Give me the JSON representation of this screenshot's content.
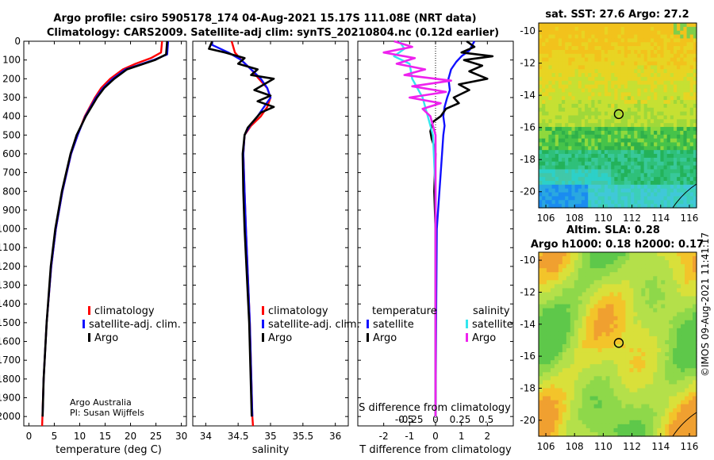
{
  "title_line1": "Argo profile: csiro 5905178_174 04-Aug-2021 15.17S 111.08E (NRT data)",
  "title_line2": "Climatology: CARS2009. Satellite-adj clim: synTS_20210804.nc (0.12d earlier)",
  "timestamp": "©IMOS 09-Aug-2021 11:41:17",
  "credit_line1": "Argo Australia",
  "credit_line2": "PI: Susan Wijffels",
  "colors": {
    "climatology": "#ff0000",
    "satellite": "#1010ff",
    "argo": "#000000",
    "sal_satellite": "#33e6ee",
    "sal_argo": "#ee22ee"
  },
  "chart_data": [
    {
      "type": "line",
      "name": "temperature-panel",
      "xlabel": "temperature (deg C)",
      "ylabel": "",
      "xlim": [
        -1,
        31
      ],
      "ylim": [
        2050,
        0
      ],
      "xticks": [
        0,
        5,
        10,
        15,
        20,
        25,
        30
      ],
      "yticks": [
        0,
        100,
        200,
        300,
        400,
        500,
        600,
        700,
        800,
        900,
        1000,
        1100,
        1200,
        1300,
        1400,
        1500,
        1600,
        1700,
        1800,
        1900,
        2000
      ],
      "legend": [
        "climatology",
        "satellite-adj. clim.",
        "Argo"
      ],
      "legend_position": "lower-right",
      "series": [
        {
          "name": "climatology",
          "color": "#ff0000",
          "depth": [
            0,
            60,
            90,
            120,
            150,
            200,
            250,
            300,
            400,
            500,
            600,
            800,
            1000,
            1200,
            1500,
            1800,
            2050
          ],
          "values": [
            26.2,
            26.0,
            24.0,
            21.0,
            18.5,
            16.0,
            14.2,
            13.0,
            11.0,
            9.6,
            8.3,
            6.6,
            5.3,
            4.4,
            3.5,
            2.9,
            2.6
          ]
        },
        {
          "name": "satellite-adj. clim.",
          "color": "#1010ff",
          "depth": [
            0,
            70,
            100,
            150,
            200,
            250,
            300,
            400,
            500,
            600,
            800,
            1000,
            1200,
            1500,
            1800,
            2000
          ],
          "values": [
            27.4,
            27.2,
            24.5,
            19.0,
            16.5,
            14.6,
            13.2,
            11.1,
            9.6,
            8.3,
            6.6,
            5.3,
            4.4,
            3.5,
            2.9,
            2.7
          ]
        },
        {
          "name": "Argo",
          "color": "#000000",
          "depth": [
            0,
            70,
            100,
            150,
            200,
            250,
            300,
            400,
            500,
            600,
            800,
            1000,
            1200,
            1500,
            1800,
            2000
          ],
          "values": [
            27.2,
            27.0,
            24.8,
            19.3,
            16.8,
            14.8,
            13.4,
            11.2,
            9.4,
            8.2,
            6.5,
            5.2,
            4.3,
            3.5,
            2.9,
            2.7
          ]
        }
      ]
    },
    {
      "type": "line",
      "name": "salinity-panel",
      "xlabel": "salinity",
      "xlim": [
        33.8,
        36.2
      ],
      "ylim": [
        2050,
        0
      ],
      "xticks": [
        34,
        34.5,
        35,
        35.5,
        36
      ],
      "xticklabels": [
        "34",
        "34.5",
        "35",
        "35.5",
        "36"
      ],
      "legend": [
        "climatology",
        "satellite-adj. clim.",
        "Argo"
      ],
      "legend_position": "lower-right",
      "series": [
        {
          "name": "climatology",
          "color": "#ff0000",
          "depth": [
            0,
            60,
            100,
            150,
            200,
            250,
            300,
            350,
            400,
            450,
            500,
            600,
            800,
            1000,
            1500,
            2000,
            2050
          ],
          "values": [
            34.4,
            34.45,
            34.55,
            34.7,
            34.82,
            34.95,
            35.0,
            34.95,
            34.85,
            34.7,
            34.6,
            34.58,
            34.6,
            34.62,
            34.68,
            34.72,
            34.73
          ]
        },
        {
          "name": "satellite-adj. clim.",
          "color": "#1010ff",
          "depth": [
            0,
            20,
            60,
            100,
            150,
            200,
            250,
            300,
            350,
            400,
            450,
            500,
            600,
            800,
            1000,
            1500,
            2000
          ],
          "values": [
            34.1,
            34.1,
            34.35,
            34.55,
            34.7,
            34.85,
            34.95,
            35.0,
            34.9,
            34.8,
            34.68,
            34.6,
            34.58,
            34.6,
            34.62,
            34.68,
            34.72
          ]
        },
        {
          "name": "Argo",
          "color": "#000000",
          "depth": [
            0,
            40,
            60,
            90,
            120,
            150,
            180,
            200,
            230,
            260,
            290,
            320,
            350,
            380,
            420,
            460,
            500,
            600,
            800,
            1000,
            1500,
            2000
          ],
          "values": [
            34.1,
            34.05,
            34.3,
            34.6,
            34.5,
            34.8,
            34.7,
            35.05,
            34.9,
            34.75,
            35.0,
            34.8,
            35.05,
            34.85,
            34.75,
            34.65,
            34.6,
            34.57,
            34.58,
            34.6,
            34.67,
            34.71
          ]
        }
      ]
    },
    {
      "type": "line",
      "name": "difference-panel",
      "xlabel": "T difference from climatology",
      "x2label": "S difference from climatology",
      "xlim": [
        -3,
        3
      ],
      "ylim": [
        2050,
        0
      ],
      "xticks": [
        -2,
        -1,
        0,
        1,
        2
      ],
      "x2ticklabels": [
        "-0.5",
        "-0.25",
        "0",
        "0.25",
        "0.5"
      ],
      "legend_temperature": "temperature",
      "legend_salinity": "salinity",
      "legend": [
        "satellite",
        "Argo",
        "satellite",
        "Argo"
      ],
      "series": [
        {
          "name": "temperature satellite",
          "color": "#1010ff",
          "depth": [
            0,
            50,
            80,
            110,
            150,
            200,
            260,
            300,
            350,
            400,
            450,
            500,
            600,
            800,
            1000,
            1500,
            2000
          ],
          "values": [
            1.5,
            1.3,
            1.0,
            0.8,
            0.6,
            0.5,
            0.55,
            0.45,
            0.35,
            0.3,
            0.35,
            0.3,
            0.25,
            0.15,
            0.05,
            0.02,
            0.0
          ]
        },
        {
          "name": "temperature Argo",
          "color": "#000000",
          "depth": [
            0,
            30,
            60,
            80,
            100,
            130,
            160,
            200,
            230,
            260,
            300,
            330,
            360,
            400,
            430,
            480,
            520,
            560,
            600,
            800,
            1000,
            1500,
            2000
          ],
          "values": [
            1.2,
            1.5,
            1.0,
            2.2,
            1.1,
            1.8,
            1.3,
            2.0,
            0.9,
            1.3,
            0.7,
            0.9,
            0.4,
            0.2,
            -0.1,
            -0.2,
            -0.15,
            -0.05,
            0.0,
            -0.05,
            0.0,
            0.0,
            0.0
          ]
        },
        {
          "name": "salinity satellite",
          "color": "#33e6ee",
          "depth": [
            0,
            40,
            80,
            120,
            200,
            300,
            400,
            500,
            800,
            1000,
            1500,
            2000
          ],
          "values": [
            -1.4,
            -1.2,
            -1.6,
            -1.0,
            -0.9,
            -0.5,
            -0.3,
            -0.1,
            0.0,
            0.0,
            0.0,
            0.0
          ]
        },
        {
          "name": "salinity Argo",
          "color": "#ee22ee",
          "depth": [
            0,
            30,
            60,
            90,
            120,
            150,
            180,
            210,
            240,
            270,
            300,
            330,
            360,
            400,
            450,
            500,
            600,
            800,
            1000,
            1500,
            2000
          ],
          "values": [
            -1.6,
            -0.9,
            -2.0,
            -0.8,
            -1.5,
            -0.4,
            -1.2,
            0.6,
            -0.9,
            0.4,
            -1.0,
            0.2,
            -0.5,
            -0.2,
            -0.1,
            0.0,
            0.0,
            0.0,
            0.0,
            0.0,
            0.0
          ]
        }
      ]
    },
    {
      "type": "heatmap",
      "name": "sst-map",
      "title": "sat. SST: 27.6  Argo: 27.2",
      "xlim": [
        105.5,
        116.5
      ],
      "ylim": [
        -21,
        -9.5
      ],
      "xticks": [
        106,
        108,
        110,
        112,
        114,
        116
      ],
      "yticks": [
        -10,
        -12,
        -14,
        -16,
        -18,
        -20
      ],
      "marker": {
        "lon": 111.08,
        "lat": -15.17
      }
    },
    {
      "type": "heatmap",
      "name": "sla-map",
      "title": "Altim. SLA: 0.28",
      "subtitle": "Argo h1000: 0.18  h2000: 0.17",
      "xlim": [
        105.5,
        116.5
      ],
      "ylim": [
        -21,
        -9.5
      ],
      "xticks": [
        106,
        108,
        110,
        112,
        114,
        116
      ],
      "yticks": [
        -10,
        -12,
        -14,
        -16,
        -18,
        -20
      ],
      "marker": {
        "lon": 111.08,
        "lat": -15.17
      }
    }
  ]
}
